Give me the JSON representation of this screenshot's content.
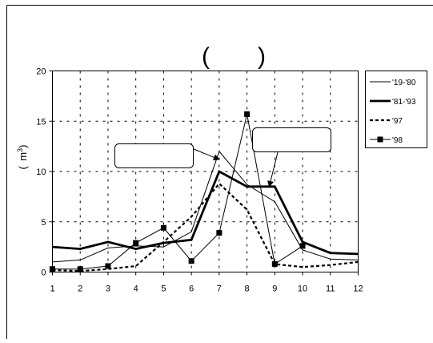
{
  "chart_data": {
    "type": "line",
    "title": "(　　)",
    "xlabel": "",
    "ylabel": "( m3)",
    "ylabel_parts": [
      "(",
      "m",
      "3",
      ")"
    ],
    "x": [
      1,
      2,
      3,
      4,
      5,
      6,
      7,
      8,
      9,
      10,
      11,
      12
    ],
    "xlim": [
      1,
      12
    ],
    "ylim": [
      0,
      20
    ],
    "yticks": [
      0,
      5,
      10,
      15,
      20
    ],
    "grid": true,
    "legend_position": "right",
    "annotations": [
      {
        "text": "",
        "points_to": {
          "x": 7,
          "y": 11.2
        }
      },
      {
        "text": "",
        "points_to": {
          "x": 8.8,
          "y": 8.5
        }
      }
    ],
    "series": [
      {
        "name": "'19-'80",
        "style": "thin",
        "values": [
          1.0,
          1.2,
          2.4,
          2.6,
          2.5,
          4.0,
          12.0,
          8.7,
          7.0,
          2.2,
          1.3,
          1.2
        ]
      },
      {
        "name": "'81-'93",
        "style": "thick",
        "values": [
          2.5,
          2.3,
          3.0,
          2.3,
          2.9,
          3.2,
          10.0,
          8.5,
          8.5,
          3.0,
          1.9,
          1.8
        ]
      },
      {
        "name": "'97",
        "style": "dashed",
        "values": [
          0.2,
          0.1,
          0.3,
          0.6,
          3.0,
          5.5,
          8.8,
          6.2,
          0.8,
          0.5,
          0.7,
          1.0
        ]
      },
      {
        "name": "'98",
        "style": "marker",
        "values": [
          0.3,
          0.3,
          0.6,
          2.9,
          4.4,
          1.1,
          3.9,
          15.7,
          0.8,
          2.6,
          null,
          null
        ]
      }
    ]
  }
}
